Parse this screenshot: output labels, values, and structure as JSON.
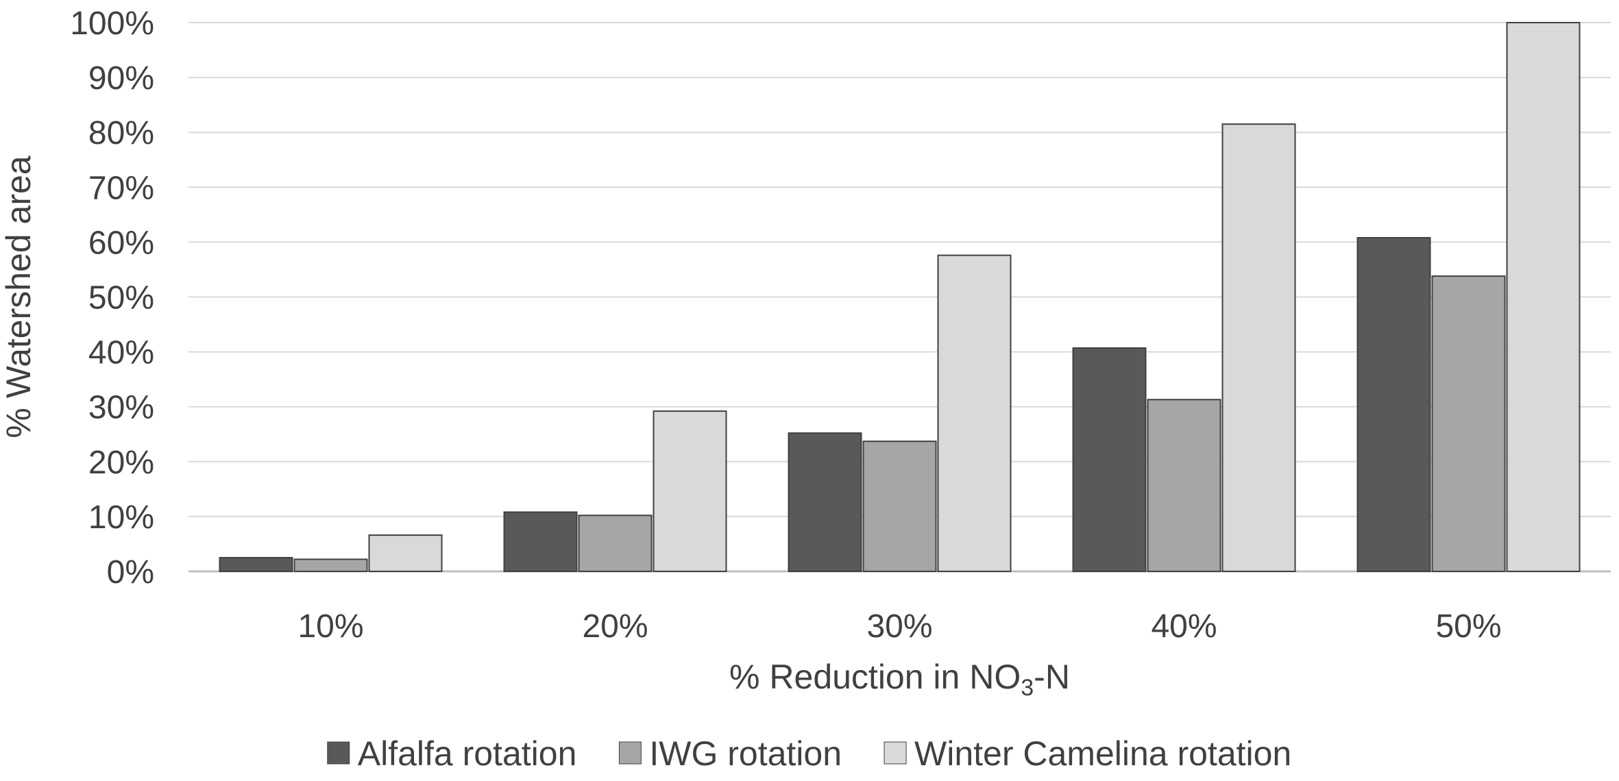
{
  "chart_data": {
    "type": "bar",
    "title": "",
    "categories": [
      "10%",
      "20%",
      "30%",
      "40%",
      "50%"
    ],
    "series": [
      {
        "name": "Alfalfa rotation",
        "color": "#595959",
        "values": [
          2.5,
          10.8,
          25.2,
          40.7,
          60.8
        ]
      },
      {
        "name": "IWG rotation",
        "color": "#a6a6a6",
        "values": [
          2.2,
          10.2,
          23.7,
          31.3,
          53.8
        ]
      },
      {
        "name": "Winter Camelina rotation",
        "color": "#d9d9d9",
        "values": [
          6.6,
          29.2,
          57.6,
          81.5,
          100
        ]
      }
    ],
    "xlabel_main": "% Reduction in NO",
    "xlabel_sub": "3",
    "xlabel_tail": "-N",
    "ylabel": "% Watershed area",
    "ylim": [
      0,
      100
    ],
    "yticks": [
      0,
      10,
      20,
      30,
      40,
      50,
      60,
      70,
      80,
      90,
      100
    ],
    "ytick_labels": [
      "0%",
      "10%",
      "20%",
      "30%",
      "40%",
      "50%",
      "60%",
      "70%",
      "80%",
      "90%",
      "100%"
    ],
    "grid": true,
    "legend_position": "bottom"
  }
}
